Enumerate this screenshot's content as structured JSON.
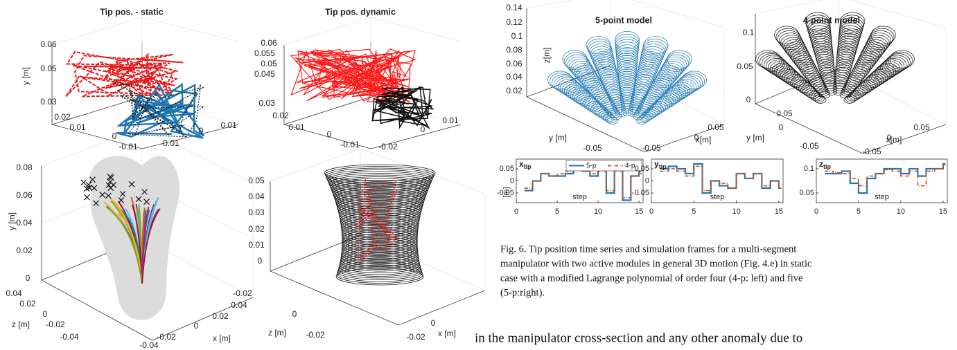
{
  "fig5": {
    "panels": [
      {
        "title": "Tip pos. - static",
        "labels": [
          "0.06",
          "0.05",
          "0.03",
          "0.02",
          "0.01",
          "0",
          "-0.01",
          "-0.01",
          "0",
          "0.01",
          "y [m]"
        ]
      },
      {
        "title": "Tip pos. dynamic",
        "labels": [
          "0.06",
          "0.055",
          "0.05",
          "0.045",
          "0.03",
          "0.02",
          "0.01",
          "0",
          "-0.01",
          "-0.02",
          "0",
          "0.01"
        ]
      },
      {
        "labels": [
          "0.08",
          "0.06",
          "0.04",
          "0.02",
          "0",
          "0.04",
          "0.02",
          "0",
          "-0.02",
          "-0.04",
          "-0.04",
          "-0.02",
          "0",
          "0.02",
          "0.04",
          "y [m]",
          "z [m]",
          "x [m]"
        ]
      },
      {
        "labels": [
          "0.05",
          "0.04",
          "0.03",
          "0.02",
          "0.01",
          "0",
          "-0.02",
          "0",
          "-0.02",
          "z [m]",
          "0",
          "-0.02",
          "x [m]"
        ]
      }
    ]
  },
  "fig6": {
    "panels": [
      {
        "title": "5-point model",
        "labels": [
          "0.14",
          "0.12",
          "0.1",
          "0.08",
          "0.06",
          "0.04",
          "0.02",
          "z[m]",
          "y [m]",
          "0.05",
          "0",
          "x[m]",
          "-0.05",
          "-0.05"
        ]
      },
      {
        "title": "4-point model",
        "labels": [
          "0.1",
          "0.05",
          "0",
          "0.05",
          "0",
          "y [m]",
          "-0.05",
          "-0.05",
          "0",
          "x[m]",
          "0.05"
        ]
      }
    ],
    "caption": [
      "Fig. 6.  Tip position time series and simulation frames for a multi-segment",
      "manipulator with two active modules in general 3D motion (Fig. 4.e) in static",
      "case with a modified Lagrange polynomial of order four (4-p: left) and five",
      "(5-p:right)."
    ]
  },
  "chart_data": [
    {
      "type": "step",
      "title": "x",
      "title_subscript": "tip",
      "x_label": "step",
      "y_label": "[m]",
      "x": [
        1,
        2,
        3,
        4,
        5,
        6,
        7,
        8,
        9,
        10,
        11,
        12,
        13,
        14,
        15
      ],
      "xlim": [
        0,
        15.5
      ],
      "xticks": [
        0,
        5,
        10,
        15
      ],
      "ylim": [
        -0.09,
        0.09
      ],
      "yticks": [
        0.05,
        0,
        -0.05
      ],
      "legend": true,
      "series": [
        {
          "name": "5-p",
          "color": "#1f77b4",
          "values": [
            -0.04,
            0.0,
            0.03,
            0.02,
            0.02,
            0.03,
            0.06,
            0.04,
            0.02,
            0.05,
            -0.05,
            0.05,
            -0.08,
            0.02,
            0.04
          ]
        },
        {
          "name": "4-p",
          "color": "#d95319",
          "values": [
            -0.03,
            0.0,
            0.03,
            0.02,
            0.03,
            0.04,
            0.05,
            0.04,
            0.03,
            0.04,
            -0.04,
            0.04,
            -0.07,
            0.02,
            0.03
          ]
        }
      ]
    },
    {
      "type": "step",
      "title": "y",
      "title_subscript": "tip",
      "x_label": "step",
      "x": [
        1,
        2,
        3,
        4,
        5,
        6,
        7,
        8,
        9,
        10,
        11,
        12,
        13,
        14,
        15
      ],
      "xlim": [
        0,
        15.5
      ],
      "xticks": [
        0,
        5,
        10,
        15
      ],
      "ylim": [
        -0.09,
        0.09
      ],
      "yticks": [
        0.05,
        0,
        -0.05
      ],
      "legend": false,
      "series": [
        {
          "name": "5-p",
          "color": "#1f77b4",
          "values": [
            0.05,
            0.06,
            0.05,
            0.03,
            0.07,
            -0.05,
            0.0,
            -0.02,
            -0.03,
            0.03,
            0.01,
            0.03,
            -0.03,
            0.0,
            -0.03
          ]
        },
        {
          "name": "4-p",
          "color": "#d95319",
          "values": [
            0.04,
            0.05,
            0.04,
            0.02,
            0.06,
            -0.04,
            0.0,
            -0.01,
            -0.03,
            0.03,
            0.01,
            0.03,
            -0.02,
            0.0,
            -0.03
          ]
        }
      ]
    },
    {
      "type": "step",
      "title": "z",
      "title_subscript": "tip",
      "x_label": "step",
      "x": [
        1,
        2,
        3,
        4,
        5,
        6,
        7,
        8,
        9,
        10,
        11,
        12,
        13,
        14,
        15
      ],
      "xlim": [
        0,
        15.5
      ],
      "xticks": [
        0,
        5,
        10,
        15
      ],
      "ylim": [
        0.03,
        0.12
      ],
      "yticks": [
        0.1,
        0.05
      ],
      "legend": false,
      "series": [
        {
          "name": "5-p",
          "color": "#1f77b4",
          "values": [
            0.09,
            0.09,
            0.095,
            0.07,
            0.05,
            0.08,
            0.09,
            0.1,
            0.1,
            0.09,
            0.1,
            0.085,
            0.1,
            0.1,
            0.11
          ]
        },
        {
          "name": "4-p",
          "color": "#d95319",
          "values": [
            0.095,
            0.092,
            0.09,
            0.08,
            0.065,
            0.085,
            0.09,
            0.098,
            0.095,
            0.085,
            0.095,
            0.065,
            0.095,
            0.1,
            0.108
          ]
        }
      ]
    }
  ],
  "body": {
    "line": "in the manipulator cross-section and any other anomaly due to"
  }
}
